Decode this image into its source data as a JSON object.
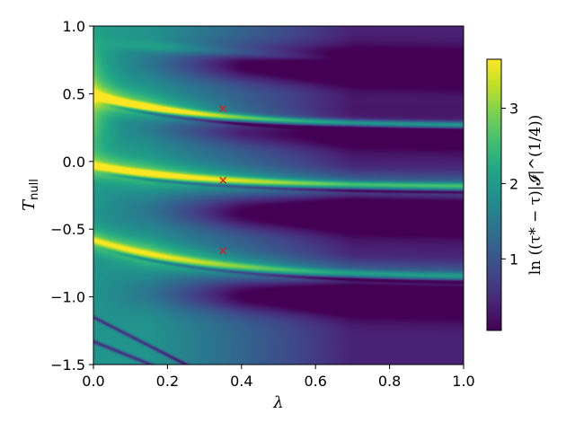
{
  "chart_data": {
    "type": "heatmap",
    "title": "",
    "xlabel": "λ",
    "ylabel": "T",
    "ylabel_sub": "null",
    "xlim": [
      0.0,
      1.0
    ],
    "ylim": [
      -1.5,
      1.0
    ],
    "xticks": [
      "0.0",
      "0.2",
      "0.4",
      "0.6",
      "0.8",
      "1.0"
    ],
    "xtick_values": [
      0.0,
      0.2,
      0.4,
      0.6,
      0.8,
      1.0
    ],
    "yticks": [
      "1.0",
      "0.5",
      "0.0",
      "−0.5",
      "−1.0",
      "−1.5"
    ],
    "ytick_values": [
      1.0,
      0.5,
      0.0,
      -0.5,
      -1.0,
      -1.5
    ],
    "colormap": "viridis",
    "colorbar": {
      "label": "ln ((τ* − τ)|𝓘|^(1/4))",
      "range": [
        0.05,
        3.65
      ],
      "ticks": [
        "1",
        "2",
        "3"
      ],
      "tick_values": [
        1,
        2,
        3
      ]
    },
    "markers": {
      "style": "x",
      "color": "#e31a1c",
      "points": [
        {
          "x": 0.35,
          "y": 0.39
        },
        {
          "x": 0.35,
          "y": -0.14
        },
        {
          "x": 0.35,
          "y": -0.66
        }
      ]
    },
    "ridges": [
      {
        "y0": 0.49,
        "y1": 0.26,
        "k": 3.2,
        "amp": 2.9
      },
      {
        "y0": -0.03,
        "y1": -0.19,
        "k": 3.0,
        "amp": 2.3
      },
      {
        "y0": -0.58,
        "y1": -0.86,
        "k": 3.0,
        "amp": 1.6
      }
    ]
  }
}
